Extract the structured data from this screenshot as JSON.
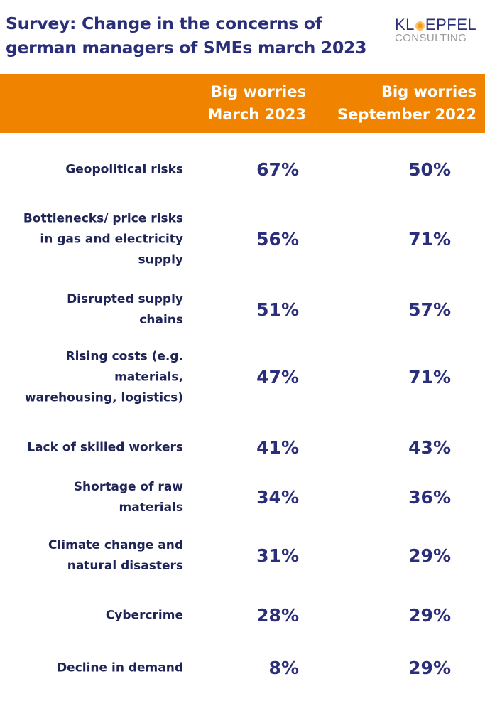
{
  "title_lines": [
    "Survey: Change in the concerns of",
    "german managers of SMEs march 2023"
  ],
  "logo": {
    "top": "KLOEPFEL",
    "bottom": "CONSULTING",
    "accent_color": "#f59b1c"
  },
  "colors": {
    "header_band": "#f08400",
    "title": "#2b2f7a",
    "text": "#1f2457"
  },
  "chart_data": {
    "type": "table",
    "title": "Survey: Change in the concerns of german managers of SMEs march 2023",
    "columns": [
      {
        "lines": [
          "Big worries",
          "March 2023"
        ]
      },
      {
        "lines": [
          "Big worries",
          "September 2022"
        ]
      }
    ],
    "rows": [
      {
        "label": "Geopolitical risks",
        "label_lines": [
          "Geopolitical risks"
        ],
        "march_2023": "67%",
        "september_2022": "50%"
      },
      {
        "label": "Bottlenecks/ price risks in gas and electricity supply",
        "label_lines": [
          "Bottlenecks/ price risks",
          "in gas and electricity",
          "supply"
        ],
        "march_2023": "56%",
        "september_2022": "71%"
      },
      {
        "label": "Disrupted supply chains",
        "label_lines": [
          "Disrupted supply",
          "chains"
        ],
        "march_2023": "51%",
        "september_2022": "57%"
      },
      {
        "label": "Rising costs (e.g. materials, warehousing, logistics)",
        "label_lines": [
          "Rising costs (e.g.",
          "materials,",
          "warehousing, logistics)"
        ],
        "march_2023": "47%",
        "september_2022": "71%"
      },
      {
        "label": "Lack of skilled workers",
        "label_lines": [
          "Lack of skilled workers"
        ],
        "march_2023": "41%",
        "september_2022": "43%"
      },
      {
        "label": "Shortage of raw materials",
        "label_lines": [
          "Shortage of raw",
          "materials"
        ],
        "march_2023": "34%",
        "september_2022": "36%"
      },
      {
        "label": "Climate change and natural disasters",
        "label_lines": [
          "Climate change and",
          "natural disasters"
        ],
        "march_2023": "31%",
        "september_2022": "29%"
      },
      {
        "label": "Cybercrime",
        "label_lines": [
          "Cybercrime"
        ],
        "march_2023": "28%",
        "september_2022": "29%"
      },
      {
        "label": "Decline in demand",
        "label_lines": [
          "Decline in demand"
        ],
        "march_2023": "8%",
        "september_2022": "29%"
      }
    ]
  }
}
